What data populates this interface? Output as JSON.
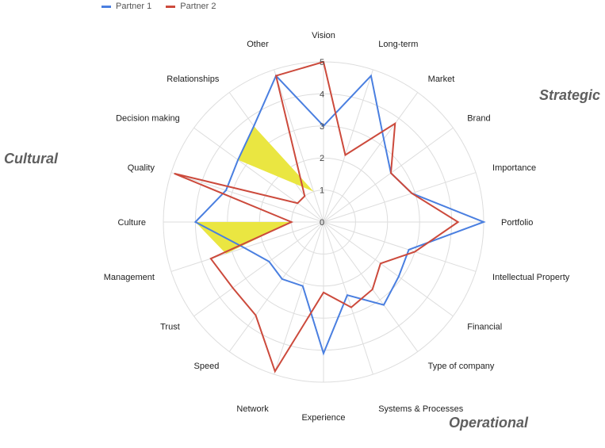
{
  "legend": [
    {
      "name": "Partner 1",
      "color": "#4a7fe0"
    },
    {
      "name": "Partner 2",
      "color": "#cc4a3c"
    }
  ],
  "groups": {
    "strategic": "Strategic",
    "cultural": "Cultural",
    "operational": "Operational"
  },
  "chart_data": {
    "type": "radar",
    "categories": [
      "Vision",
      "Long-term",
      "Market",
      "Brand",
      "Importance",
      "Portfolio",
      "Intellectual Property",
      "Financial",
      "Type of company",
      "Systems & Processes",
      "Experience",
      "Network",
      "Speed",
      "Trust",
      "Management",
      "Culture",
      "Quality",
      "Decision making",
      "Relationships",
      "Other"
    ],
    "rlim": [
      0,
      5
    ],
    "ticks": [
      "0",
      "1",
      "2",
      "3",
      "4",
      "5"
    ],
    "series": [
      {
        "name": "Partner 1",
        "color": "#4a7fe0",
        "values": [
          3,
          4.8,
          3.2,
          2.6,
          2.9,
          5,
          2.8,
          2.9,
          3.2,
          2.4,
          4.1,
          2.1,
          2.2,
          2.1,
          2.6,
          4,
          3.2,
          3.3,
          3.7,
          4.8
        ]
      },
      {
        "name": "Partner 2",
        "color": "#cc4a3c",
        "values": [
          5,
          2.2,
          3.8,
          2.6,
          2.9,
          4.2,
          3,
          2.2,
          2.6,
          2.8,
          2.2,
          4.9,
          3.6,
          3.5,
          3.7,
          1,
          4.9,
          1,
          1,
          4.8
        ]
      }
    ],
    "highlights": [
      {
        "color": "#eae641",
        "points": [
          [
            17,
            3.3
          ],
          [
            18,
            3.7
          ],
          [
            19,
            1
          ]
        ]
      },
      {
        "color": "#eae641",
        "points": [
          [
            15,
            1
          ],
          [
            15,
            4
          ],
          [
            14,
            3.2
          ]
        ]
      }
    ]
  }
}
